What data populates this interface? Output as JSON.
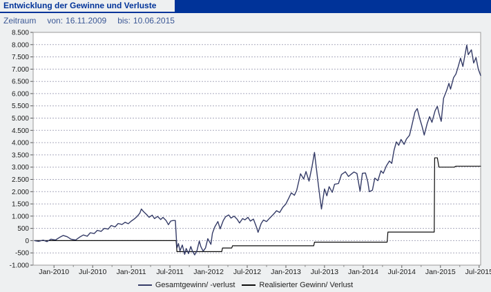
{
  "header": {
    "title": "Entwicklung der Gewinne und Verluste",
    "bar_color": "#003399"
  },
  "period": {
    "label": "Zeitraum",
    "from_label": "von:",
    "from_value": "16.11.2009",
    "to_label": "bis:",
    "to_value": "10.06.2015"
  },
  "legend": {
    "items": [
      {
        "label": "Gesamtgewinn/ -verlust",
        "color": "#333a66"
      },
      {
        "label": "Realisierter Gewinn/ Verlust",
        "color": "#0a0a0a"
      }
    ]
  },
  "chart_data": {
    "type": "line",
    "title": "Entwicklung der Gewinne und Verluste",
    "xlabel": "",
    "ylabel": "",
    "x_domain": [
      2009.73,
      2015.52
    ],
    "y_domain": [
      -1000,
      8500
    ],
    "grid": "horizontal-dashed",
    "grid_color": "#a8a8bc",
    "plot_bg": "#ffffff",
    "border_color": "#999999",
    "legend_position": "bottom-center",
    "y_ticks": [
      8500,
      8000,
      7500,
      7000,
      6500,
      6000,
      5500,
      5000,
      4500,
      4000,
      3500,
      3000,
      2500,
      2000,
      1500,
      1000,
      500,
      0,
      -500,
      -1000
    ],
    "y_tick_labels": [
      "8.500",
      "8.000",
      "7.500",
      "7.000",
      "6.500",
      "6.000",
      "5.500",
      "5.000",
      "4.500",
      "4.000",
      "3.500",
      "3.000",
      "2.500",
      "2.000",
      "1.500",
      "1.000",
      "500",
      "0",
      "-500",
      "-1.000"
    ],
    "x_ticks": [
      2010.0,
      2010.5,
      2011.0,
      2011.5,
      2012.0,
      2012.5,
      2013.0,
      2013.5,
      2014.0,
      2014.5,
      2015.0,
      2015.5
    ],
    "x_tick_labels": [
      "Jan-2010",
      "Jul-2010",
      "Jan-2011",
      "Jul-2011",
      "Jan-2012",
      "Jul-2012",
      "Jan-2013",
      "Jul-2013",
      "Jan-2014",
      "Jul-2014",
      "Jan-2015",
      "Jul-2015"
    ],
    "x_minor_ticks": [
      2010.25,
      2010.75,
      2011.25,
      2011.75,
      2012.25,
      2012.75,
      2013.25,
      2013.75,
      2014.25,
      2014.75,
      2015.25
    ],
    "series": [
      {
        "id": "gesamtgewinn-verlust-line",
        "name": "Gesamtgewinn/ -verlust",
        "color": "#333a66",
        "width": 1.4,
        "points": [
          [
            2009.75,
            0
          ],
          [
            2009.8,
            -30
          ],
          [
            2009.86,
            20
          ],
          [
            2009.91,
            -40
          ],
          [
            2009.96,
            60
          ],
          [
            2010.02,
            30
          ],
          [
            2010.07,
            130
          ],
          [
            2010.12,
            210
          ],
          [
            2010.17,
            160
          ],
          [
            2010.22,
            60
          ],
          [
            2010.28,
            30
          ],
          [
            2010.33,
            140
          ],
          [
            2010.38,
            230
          ],
          [
            2010.43,
            180
          ],
          [
            2010.47,
            320
          ],
          [
            2010.52,
            290
          ],
          [
            2010.56,
            420
          ],
          [
            2010.61,
            380
          ],
          [
            2010.65,
            500
          ],
          [
            2010.7,
            470
          ],
          [
            2010.74,
            620
          ],
          [
            2010.79,
            560
          ],
          [
            2010.83,
            700
          ],
          [
            2010.88,
            660
          ],
          [
            2010.92,
            750
          ],
          [
            2010.96,
            690
          ],
          [
            2011.0,
            800
          ],
          [
            2011.04,
            890
          ],
          [
            2011.07,
            970
          ],
          [
            2011.11,
            1120
          ],
          [
            2011.13,
            1290
          ],
          [
            2011.16,
            1180
          ],
          [
            2011.2,
            1060
          ],
          [
            2011.23,
            950
          ],
          [
            2011.27,
            1040
          ],
          [
            2011.3,
            900
          ],
          [
            2011.34,
            990
          ],
          [
            2011.38,
            860
          ],
          [
            2011.41,
            950
          ],
          [
            2011.45,
            820
          ],
          [
            2011.48,
            650
          ],
          [
            2011.51,
            800
          ],
          [
            2011.54,
            820
          ],
          [
            2011.57,
            820
          ],
          [
            2011.59,
            -300
          ],
          [
            2011.61,
            -120
          ],
          [
            2011.63,
            -420
          ],
          [
            2011.66,
            -180
          ],
          [
            2011.69,
            -560
          ],
          [
            2011.71,
            -320
          ],
          [
            2011.74,
            -530
          ],
          [
            2011.77,
            -240
          ],
          [
            2011.79,
            -420
          ],
          [
            2011.82,
            -580
          ],
          [
            2011.85,
            -400
          ],
          [
            2011.88,
            -20
          ],
          [
            2011.9,
            -250
          ],
          [
            2011.93,
            -430
          ],
          [
            2011.96,
            -300
          ],
          [
            2011.99,
            80
          ],
          [
            2012.03,
            -150
          ],
          [
            2012.05,
            300
          ],
          [
            2012.08,
            560
          ],
          [
            2012.12,
            780
          ],
          [
            2012.15,
            480
          ],
          [
            2012.19,
            820
          ],
          [
            2012.22,
            980
          ],
          [
            2012.26,
            1050
          ],
          [
            2012.29,
            920
          ],
          [
            2012.33,
            1000
          ],
          [
            2012.37,
            870
          ],
          [
            2012.4,
            720
          ],
          [
            2012.44,
            900
          ],
          [
            2012.47,
            850
          ],
          [
            2012.51,
            950
          ],
          [
            2012.54,
            800
          ],
          [
            2012.58,
            880
          ],
          [
            2012.62,
            550
          ],
          [
            2012.64,
            340
          ],
          [
            2012.68,
            700
          ],
          [
            2012.71,
            840
          ],
          [
            2012.75,
            780
          ],
          [
            2012.79,
            920
          ],
          [
            2012.84,
            1080
          ],
          [
            2012.88,
            1220
          ],
          [
            2012.92,
            1150
          ],
          [
            2012.96,
            1360
          ],
          [
            2013.0,
            1500
          ],
          [
            2013.04,
            1750
          ],
          [
            2013.07,
            1950
          ],
          [
            2013.11,
            1850
          ],
          [
            2013.14,
            2050
          ],
          [
            2013.19,
            2730
          ],
          [
            2013.23,
            2515
          ],
          [
            2013.26,
            2820
          ],
          [
            2013.3,
            2430
          ],
          [
            2013.34,
            3050
          ],
          [
            2013.37,
            3600
          ],
          [
            2013.41,
            2530
          ],
          [
            2013.44,
            1780
          ],
          [
            2013.46,
            1290
          ],
          [
            2013.5,
            2110
          ],
          [
            2013.53,
            1830
          ],
          [
            2013.56,
            2200
          ],
          [
            2013.6,
            1970
          ],
          [
            2013.63,
            2300
          ],
          [
            2013.68,
            2330
          ],
          [
            2013.72,
            2700
          ],
          [
            2013.77,
            2810
          ],
          [
            2013.81,
            2620
          ],
          [
            2013.86,
            2750
          ],
          [
            2013.88,
            2800
          ],
          [
            2013.92,
            2740
          ],
          [
            2013.96,
            2020
          ],
          [
            2013.99,
            2750
          ],
          [
            2014.03,
            2760
          ],
          [
            2014.06,
            2400
          ],
          [
            2014.08,
            2000
          ],
          [
            2014.12,
            2060
          ],
          [
            2014.15,
            2550
          ],
          [
            2014.19,
            2450
          ],
          [
            2014.23,
            2850
          ],
          [
            2014.26,
            2750
          ],
          [
            2014.3,
            3050
          ],
          [
            2014.34,
            3250
          ],
          [
            2014.37,
            3150
          ],
          [
            2014.4,
            3700
          ],
          [
            2014.43,
            4030
          ],
          [
            2014.46,
            3890
          ],
          [
            2014.49,
            4130
          ],
          [
            2014.53,
            3930
          ],
          [
            2014.56,
            4150
          ],
          [
            2014.6,
            4300
          ],
          [
            2014.63,
            4700
          ],
          [
            2014.67,
            5250
          ],
          [
            2014.7,
            5390
          ],
          [
            2014.73,
            5000
          ],
          [
            2014.76,
            4690
          ],
          [
            2014.79,
            4310
          ],
          [
            2014.83,
            4800
          ],
          [
            2014.86,
            5060
          ],
          [
            2014.89,
            4830
          ],
          [
            2014.93,
            5300
          ],
          [
            2014.96,
            5480
          ],
          [
            2014.98,
            5200
          ],
          [
            2015.01,
            4870
          ],
          [
            2015.04,
            5810
          ],
          [
            2015.08,
            6130
          ],
          [
            2015.11,
            6420
          ],
          [
            2015.13,
            6180
          ],
          [
            2015.17,
            6650
          ],
          [
            2015.2,
            6800
          ],
          [
            2015.23,
            7100
          ],
          [
            2015.26,
            7450
          ],
          [
            2015.29,
            7110
          ],
          [
            2015.34,
            7980
          ],
          [
            2015.36,
            7590
          ],
          [
            2015.4,
            7790
          ],
          [
            2015.43,
            7250
          ],
          [
            2015.46,
            7470
          ],
          [
            2015.49,
            7000
          ],
          [
            2015.52,
            6740
          ]
        ]
      },
      {
        "id": "realisierter-gewinn-verlust-line",
        "name": "Realisierter Gewinn/ Verlust",
        "color": "#0a0a0a",
        "width": 1.2,
        "points": [
          [
            2009.75,
            0
          ],
          [
            2011.58,
            0
          ],
          [
            2011.59,
            -450
          ],
          [
            2012.17,
            -450
          ],
          [
            2012.18,
            -300
          ],
          [
            2012.3,
            -300
          ],
          [
            2012.31,
            -210
          ],
          [
            2013.36,
            -210
          ],
          [
            2013.37,
            -60
          ],
          [
            2014.31,
            -60
          ],
          [
            2014.32,
            350
          ],
          [
            2014.92,
            350
          ],
          [
            2014.925,
            3380
          ],
          [
            2014.96,
            3380
          ],
          [
            2014.98,
            3000
          ],
          [
            2015.18,
            3000
          ],
          [
            2015.2,
            3040
          ],
          [
            2015.52,
            3040
          ]
        ]
      }
    ]
  }
}
